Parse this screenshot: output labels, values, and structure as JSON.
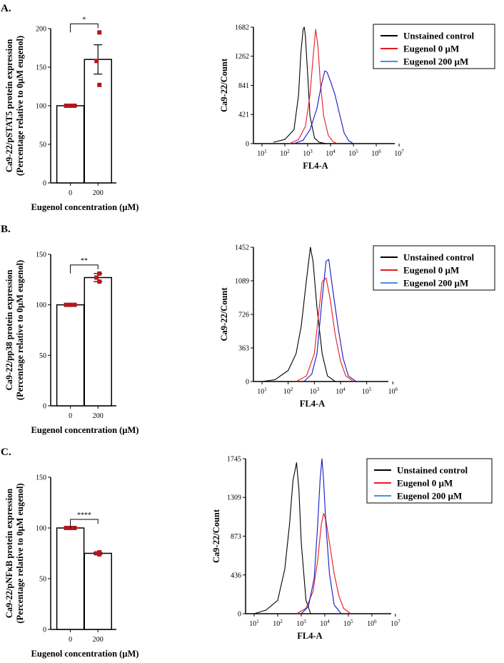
{
  "figure": {
    "panels": [
      {
        "label": "A.",
        "bar": {
          "type": "bar",
          "ylabel_line1": "Ca9-22/pSTAT5 protein expression",
          "ylabel_line2": "(Percentage relative to 0µM eugenol)",
          "xlabel": "Eugenol concentration (µM)",
          "categories": [
            "0",
            "200"
          ],
          "values": [
            100,
            160
          ],
          "sem": [
            0,
            19
          ],
          "points": [
            [
              100,
              100,
              100
            ],
            [
              195,
              158,
              127
            ]
          ],
          "ylim": [
            0,
            200
          ],
          "yticks": [
            0,
            50,
            100,
            150,
            200
          ],
          "significance": "*"
        },
        "hist": {
          "type": "line",
          "ylabel": "Ca9-22/Count",
          "xlabel": "FL4-A",
          "yticks": [
            "0",
            "421",
            "841",
            "1262",
            "1682"
          ],
          "ymax": 1682,
          "xtick_exponents": [
            1,
            2,
            3,
            4,
            5,
            6,
            7
          ],
          "series": [
            {
              "name": "Unstained control",
              "color": "#000000",
              "x": [
                1.5,
                2.0,
                2.4,
                2.6,
                2.7,
                2.8,
                2.85,
                2.9,
                3.0,
                3.1,
                3.3,
                3.5,
                3.8
              ],
              "y": [
                20,
                60,
                200,
                700,
                1300,
                1650,
                1682,
                1550,
                1000,
                400,
                80,
                20,
                0
              ]
            },
            {
              "name": "Eugenol 0 µM",
              "color": "#e8191e",
              "x": [
                2.2,
                2.6,
                2.9,
                3.1,
                3.25,
                3.35,
                3.45,
                3.55,
                3.7,
                3.9,
                4.1,
                4.3
              ],
              "y": [
                0,
                60,
                250,
                700,
                1300,
                1650,
                1400,
                900,
                400,
                120,
                30,
                0
              ]
            },
            {
              "name": "Eugenol 200 µM",
              "color": "#1515c8",
              "x": [
                2.4,
                2.8,
                3.1,
                3.4,
                3.6,
                3.75,
                3.85,
                4.0,
                4.2,
                4.4,
                4.6,
                4.8,
                5.0
              ],
              "y": [
                0,
                50,
                200,
                500,
                850,
                1050,
                1030,
                900,
                700,
                420,
                150,
                40,
                0
              ]
            }
          ]
        }
      },
      {
        "label": "B.",
        "bar": {
          "type": "bar",
          "ylabel_line1": "Ca9-22/pp38 protein expression",
          "ylabel_line2": "(Percentage relative to 0µM eugenol)",
          "xlabel": "Eugenol concentration (µM)",
          "categories": [
            "0",
            "200"
          ],
          "values": [
            100,
            127
          ],
          "sem": [
            0,
            4
          ],
          "points": [
            [
              100,
              100,
              100
            ],
            [
              131,
              127,
              123
            ]
          ],
          "ylim": [
            0,
            150
          ],
          "yticks": [
            0,
            50,
            100,
            150
          ],
          "significance": "**"
        },
        "hist": {
          "type": "line",
          "ylabel": "Ca9-22/Count",
          "xlabel": "FL4-A",
          "yticks": [
            "0",
            "363",
            "726",
            "1089",
            "1452"
          ],
          "ymax": 1452,
          "xtick_exponents": [
            1,
            2,
            3,
            4,
            5,
            6
          ],
          "series": [
            {
              "name": "Unstained control",
              "color": "#000000",
              "x": [
                1.0,
                1.5,
                2.0,
                2.3,
                2.5,
                2.7,
                2.85,
                2.95,
                3.1,
                3.3,
                3.5,
                3.8
              ],
              "y": [
                0,
                20,
                120,
                300,
                600,
                1100,
                1452,
                1300,
                800,
                300,
                60,
                0
              ]
            },
            {
              "name": "Eugenol 0 µM",
              "color": "#e8191e",
              "x": [
                2.3,
                2.7,
                3.0,
                3.15,
                3.3,
                3.45,
                3.6,
                3.8,
                4.0,
                4.2,
                4.5
              ],
              "y": [
                0,
                60,
                300,
                700,
                1080,
                1120,
                900,
                500,
                220,
                60,
                0
              ]
            },
            {
              "name": "Eugenol 200 µM",
              "color": "#1515c8",
              "x": [
                2.6,
                2.9,
                3.1,
                3.3,
                3.45,
                3.55,
                3.7,
                3.9,
                4.1,
                4.3,
                4.6
              ],
              "y": [
                0,
                80,
                300,
                900,
                1300,
                1320,
                1000,
                600,
                250,
                60,
                0
              ]
            }
          ]
        }
      },
      {
        "label": "C.",
        "bar": {
          "type": "bar",
          "ylabel_line1": "Ca9-22/pNFκB protein expression",
          "ylabel_line2": "(Percentage relative to 0µM eugenol)",
          "xlabel": "Eugenol concentration (µM)",
          "categories": [
            "0",
            "200"
          ],
          "values": [
            100,
            75
          ],
          "sem": [
            0,
            1
          ],
          "points": [
            [
              100,
              100,
              100
            ],
            [
              74,
              75,
              76
            ]
          ],
          "ylim": [
            0,
            150
          ],
          "yticks": [
            0,
            50,
            100,
            150
          ],
          "significance": "****"
        },
        "hist": {
          "type": "line",
          "ylabel": "Ca9-22/Count",
          "xlabel": "FL4-A",
          "yticks": [
            "0",
            "436",
            "873",
            "1309",
            "1745"
          ],
          "ymax": 1745,
          "xtick_exponents": [
            1,
            2,
            3,
            4,
            5,
            6,
            7
          ],
          "series": [
            {
              "name": "Unstained control",
              "color": "#000000",
              "x": [
                1.0,
                1.5,
                2.0,
                2.3,
                2.5,
                2.65,
                2.8,
                2.9,
                3.0,
                3.2,
                3.4
              ],
              "y": [
                0,
                40,
                150,
                500,
                1000,
                1500,
                1700,
                1400,
                800,
                150,
                0
              ]
            },
            {
              "name": "Eugenol 0 µM",
              "color": "#e8191e",
              "x": [
                2.8,
                3.2,
                3.5,
                3.7,
                3.85,
                3.95,
                4.05,
                4.2,
                4.4,
                4.6,
                4.8,
                5.1
              ],
              "y": [
                0,
                60,
                250,
                600,
                1000,
                1130,
                1050,
                800,
                450,
                200,
                60,
                0
              ]
            },
            {
              "name": "Eugenol 200 µM",
              "color": "#1515c8",
              "x": [
                3.0,
                3.3,
                3.55,
                3.7,
                3.8,
                3.88,
                3.95,
                4.05,
                4.2,
                4.4,
                4.7
              ],
              "y": [
                0,
                80,
                400,
                1000,
                1500,
                1745,
                1500,
                1000,
                450,
                100,
                0
              ]
            }
          ]
        }
      }
    ]
  }
}
